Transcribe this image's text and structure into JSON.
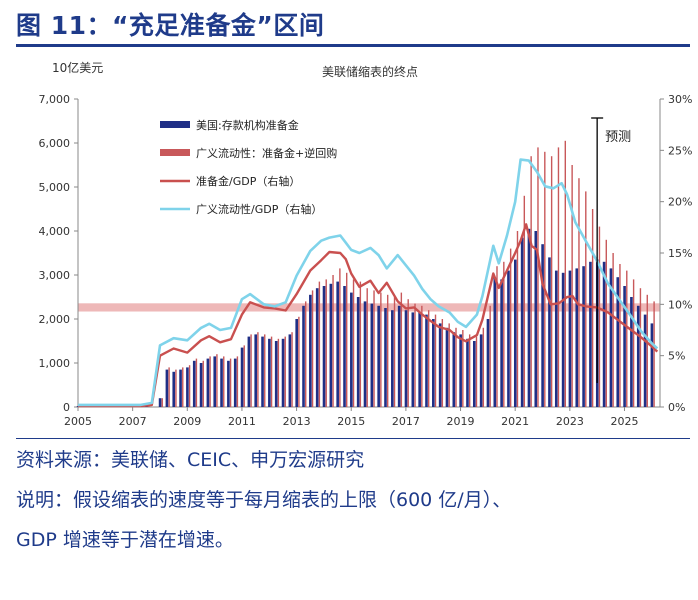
{
  "figure_title": "图 11：“充足准备金”区间",
  "source_text": "资料来源：美联储、CEIC、申万宏源研究",
  "note_line1": "说明：假设缩表的速度等于每月缩表的上限（600 亿/月）、",
  "note_line2": "GDP 增速等于潜在增速。",
  "colors": {
    "navy": "#1f2f86",
    "bar_red": "#c8585a",
    "line_red": "#c9504f",
    "line_cyan": "#7fd3ea",
    "band": "#e8a0a0",
    "title_blue": "#1f3b8a"
  },
  "chart_data": {
    "type": "bar+line",
    "title": "美联储缩表的终点",
    "left_unit": "10亿美元",
    "x_ticks": [
      "2005",
      "2007",
      "2009",
      "2011",
      "2013",
      "2015",
      "2017",
      "2019",
      "2021",
      "2023",
      "2025"
    ],
    "y_left_ticks": [
      "0",
      "1,000",
      "2,000",
      "3,000",
      "4,000",
      "5,000",
      "6,000",
      "7,000"
    ],
    "y_right_ticks": [
      "0%",
      "5%",
      "10%",
      "15%",
      "20%",
      "25%",
      "30%"
    ],
    "ylim_left": [
      0,
      7000
    ],
    "ylim_right": [
      0,
      0.3
    ],
    "xlim": [
      2005,
      2026.3
    ],
    "legend": [
      "美国:存款机构准备金",
      "广义流动性：准备金+逆回购",
      "准备金/GDP（右轴）",
      "广义流动性/GDP（右轴）"
    ],
    "forecast_label": "预测",
    "forecast_x": 2024.0,
    "band_range_pct": [
      0.093,
      0.101
    ],
    "reserves_bars": [
      [
        2005.0,
        20
      ],
      [
        2005.5,
        20
      ],
      [
        2006.0,
        20
      ],
      [
        2006.5,
        20
      ],
      [
        2007.0,
        20
      ],
      [
        2007.5,
        20
      ],
      [
        2008.0,
        200
      ],
      [
        2008.25,
        850
      ],
      [
        2008.5,
        800
      ],
      [
        2008.75,
        850
      ],
      [
        2009.0,
        900
      ],
      [
        2009.25,
        1050
      ],
      [
        2009.5,
        1000
      ],
      [
        2009.75,
        1100
      ],
      [
        2010.0,
        1150
      ],
      [
        2010.25,
        1100
      ],
      [
        2010.5,
        1050
      ],
      [
        2010.75,
        1100
      ],
      [
        2011.0,
        1350
      ],
      [
        2011.25,
        1600
      ],
      [
        2011.5,
        1650
      ],
      [
        2011.75,
        1600
      ],
      [
        2012.0,
        1550
      ],
      [
        2012.25,
        1500
      ],
      [
        2012.5,
        1550
      ],
      [
        2012.75,
        1650
      ],
      [
        2013.0,
        2000
      ],
      [
        2013.25,
        2300
      ],
      [
        2013.5,
        2550
      ],
      [
        2013.75,
        2700
      ],
      [
        2014.0,
        2750
      ],
      [
        2014.25,
        2800
      ],
      [
        2014.5,
        2850
      ],
      [
        2014.75,
        2750
      ],
      [
        2015.0,
        2600
      ],
      [
        2015.25,
        2500
      ],
      [
        2015.5,
        2400
      ],
      [
        2015.75,
        2350
      ],
      [
        2016.0,
        2300
      ],
      [
        2016.25,
        2250
      ],
      [
        2016.5,
        2200
      ],
      [
        2016.75,
        2300
      ],
      [
        2017.0,
        2200
      ],
      [
        2017.25,
        2150
      ],
      [
        2017.5,
        2150
      ],
      [
        2017.75,
        2100
      ],
      [
        2018.0,
        2000
      ],
      [
        2018.25,
        1900
      ],
      [
        2018.5,
        1800
      ],
      [
        2018.75,
        1700
      ],
      [
        2019.0,
        1650
      ],
      [
        2019.25,
        1550
      ],
      [
        2019.5,
        1500
      ],
      [
        2019.75,
        1650
      ],
      [
        2020.0,
        2000
      ],
      [
        2020.25,
        2950
      ],
      [
        2020.5,
        2900
      ],
      [
        2020.75,
        3100
      ],
      [
        2021.0,
        3350
      ],
      [
        2021.25,
        3850
      ],
      [
        2021.5,
        4050
      ],
      [
        2021.75,
        4000
      ],
      [
        2022.0,
        3700
      ],
      [
        2022.25,
        3400
      ],
      [
        2022.5,
        3100
      ],
      [
        2022.75,
        3050
      ],
      [
        2023.0,
        3100
      ],
      [
        2023.25,
        3150
      ],
      [
        2023.5,
        3200
      ],
      [
        2023.75,
        3300
      ],
      [
        2024.0,
        3350
      ],
      [
        2024.25,
        3300
      ],
      [
        2024.5,
        3150
      ],
      [
        2024.75,
        2950
      ],
      [
        2025.0,
        2750
      ],
      [
        2025.25,
        2500
      ],
      [
        2025.5,
        2300
      ],
      [
        2025.75,
        2100
      ],
      [
        2026.0,
        1900
      ]
    ],
    "liquidity_bars": [
      [
        2005.0,
        20
      ],
      [
        2005.5,
        20
      ],
      [
        2006.0,
        20
      ],
      [
        2006.5,
        20
      ],
      [
        2007.0,
        20
      ],
      [
        2007.5,
        20
      ],
      [
        2008.0,
        200
      ],
      [
        2008.25,
        900
      ],
      [
        2008.5,
        850
      ],
      [
        2008.75,
        900
      ],
      [
        2009.0,
        950
      ],
      [
        2009.25,
        1100
      ],
      [
        2009.5,
        1050
      ],
      [
        2009.75,
        1150
      ],
      [
        2010.0,
        1200
      ],
      [
        2010.25,
        1150
      ],
      [
        2010.5,
        1100
      ],
      [
        2010.75,
        1150
      ],
      [
        2011.0,
        1400
      ],
      [
        2011.25,
        1650
      ],
      [
        2011.5,
        1700
      ],
      [
        2011.75,
        1650
      ],
      [
        2012.0,
        1600
      ],
      [
        2012.25,
        1550
      ],
      [
        2012.5,
        1600
      ],
      [
        2012.75,
        1700
      ],
      [
        2013.0,
        2050
      ],
      [
        2013.25,
        2400
      ],
      [
        2013.5,
        2650
      ],
      [
        2013.75,
        2850
      ],
      [
        2014.0,
        2900
      ],
      [
        2014.25,
        3000
      ],
      [
        2014.5,
        3150
      ],
      [
        2014.75,
        3050
      ],
      [
        2015.0,
        2900
      ],
      [
        2015.25,
        2850
      ],
      [
        2015.5,
        2700
      ],
      [
        2015.75,
        2650
      ],
      [
        2016.0,
        2600
      ],
      [
        2016.25,
        2550
      ],
      [
        2016.5,
        2500
      ],
      [
        2016.75,
        2600
      ],
      [
        2017.0,
        2450
      ],
      [
        2017.25,
        2350
      ],
      [
        2017.5,
        2300
      ],
      [
        2017.75,
        2200
      ],
      [
        2018.0,
        2100
      ],
      [
        2018.25,
        2000
      ],
      [
        2018.5,
        1900
      ],
      [
        2018.75,
        1800
      ],
      [
        2019.0,
        1750
      ],
      [
        2019.25,
        1650
      ],
      [
        2019.5,
        1600
      ],
      [
        2019.75,
        1800
      ],
      [
        2020.0,
        2300
      ],
      [
        2020.25,
        3200
      ],
      [
        2020.5,
        3300
      ],
      [
        2020.75,
        3600
      ],
      [
        2021.0,
        4000
      ],
      [
        2021.25,
        4800
      ],
      [
        2021.5,
        5700
      ],
      [
        2021.75,
        5900
      ],
      [
        2022.0,
        5800
      ],
      [
        2022.25,
        5700
      ],
      [
        2022.5,
        5900
      ],
      [
        2022.75,
        6050
      ],
      [
        2023.0,
        5500
      ],
      [
        2023.25,
        5200
      ],
      [
        2023.5,
        4900
      ],
      [
        2023.75,
        4500
      ],
      [
        2024.0,
        4100
      ],
      [
        2024.25,
        3800
      ],
      [
        2024.5,
        3500
      ],
      [
        2024.75,
        3250
      ],
      [
        2025.0,
        3100
      ],
      [
        2025.25,
        2900
      ],
      [
        2025.5,
        2700
      ],
      [
        2025.75,
        2550
      ],
      [
        2026.0,
        2400
      ]
    ],
    "reserves_gdp": [
      [
        2005.0,
        0.001
      ],
      [
        2007.3,
        0.001
      ],
      [
        2007.7,
        0.002
      ],
      [
        2008.0,
        0.05
      ],
      [
        2008.5,
        0.057
      ],
      [
        2009.0,
        0.053
      ],
      [
        2009.5,
        0.065
      ],
      [
        2009.8,
        0.069
      ],
      [
        2010.2,
        0.063
      ],
      [
        2010.6,
        0.066
      ],
      [
        2011.0,
        0.09
      ],
      [
        2011.3,
        0.102
      ],
      [
        2011.8,
        0.097
      ],
      [
        2012.2,
        0.096
      ],
      [
        2012.6,
        0.094
      ],
      [
        2013.0,
        0.11
      ],
      [
        2013.5,
        0.133
      ],
      [
        2013.9,
        0.143
      ],
      [
        2014.2,
        0.151
      ],
      [
        2014.6,
        0.15
      ],
      [
        2014.8,
        0.144
      ],
      [
        2015.0,
        0.13
      ],
      [
        2015.3,
        0.117
      ],
      [
        2015.7,
        0.123
      ],
      [
        2016.0,
        0.111
      ],
      [
        2016.3,
        0.121
      ],
      [
        2016.7,
        0.103
      ],
      [
        2017.0,
        0.096
      ],
      [
        2017.3,
        0.097
      ],
      [
        2017.6,
        0.09
      ],
      [
        2017.9,
        0.084
      ],
      [
        2018.2,
        0.078
      ],
      [
        2018.6,
        0.075
      ],
      [
        2018.9,
        0.068
      ],
      [
        2019.2,
        0.064
      ],
      [
        2019.6,
        0.07
      ],
      [
        2019.8,
        0.085
      ],
      [
        2020.2,
        0.13
      ],
      [
        2020.4,
        0.116
      ],
      [
        2020.7,
        0.133
      ],
      [
        2021.0,
        0.15
      ],
      [
        2021.2,
        0.162
      ],
      [
        2021.4,
        0.178
      ],
      [
        2021.6,
        0.157
      ],
      [
        2021.8,
        0.153
      ],
      [
        2022.0,
        0.12
      ],
      [
        2022.3,
        0.1
      ],
      [
        2022.6,
        0.101
      ],
      [
        2022.9,
        0.107
      ],
      [
        2023.1,
        0.108
      ],
      [
        2023.3,
        0.1
      ],
      [
        2023.6,
        0.098
      ],
      [
        2024.0,
        0.097
      ],
      [
        2024.4,
        0.092
      ],
      [
        2024.8,
        0.084
      ],
      [
        2025.2,
        0.076
      ],
      [
        2025.6,
        0.068
      ],
      [
        2026.0,
        0.059
      ],
      [
        2026.2,
        0.054
      ]
    ],
    "liquidity_gdp": [
      [
        2005.0,
        0.002
      ],
      [
        2007.3,
        0.002
      ],
      [
        2007.7,
        0.004
      ],
      [
        2008.0,
        0.06
      ],
      [
        2008.5,
        0.067
      ],
      [
        2009.0,
        0.065
      ],
      [
        2009.5,
        0.077
      ],
      [
        2009.8,
        0.081
      ],
      [
        2010.2,
        0.075
      ],
      [
        2010.6,
        0.077
      ],
      [
        2011.0,
        0.105
      ],
      [
        2011.3,
        0.11
      ],
      [
        2011.8,
        0.1
      ],
      [
        2012.2,
        0.098
      ],
      [
        2012.6,
        0.102
      ],
      [
        2013.0,
        0.128
      ],
      [
        2013.5,
        0.152
      ],
      [
        2013.9,
        0.162
      ],
      [
        2014.2,
        0.165
      ],
      [
        2014.6,
        0.167
      ],
      [
        2014.8,
        0.16
      ],
      [
        2015.0,
        0.153
      ],
      [
        2015.3,
        0.15
      ],
      [
        2015.7,
        0.155
      ],
      [
        2016.0,
        0.148
      ],
      [
        2016.3,
        0.135
      ],
      [
        2016.7,
        0.148
      ],
      [
        2017.0,
        0.138
      ],
      [
        2017.3,
        0.128
      ],
      [
        2017.6,
        0.115
      ],
      [
        2017.9,
        0.105
      ],
      [
        2018.2,
        0.098
      ],
      [
        2018.6,
        0.092
      ],
      [
        2018.9,
        0.083
      ],
      [
        2019.2,
        0.078
      ],
      [
        2019.6,
        0.09
      ],
      [
        2019.8,
        0.108
      ],
      [
        2020.2,
        0.157
      ],
      [
        2020.4,
        0.14
      ],
      [
        2020.7,
        0.167
      ],
      [
        2021.0,
        0.2
      ],
      [
        2021.2,
        0.241
      ],
      [
        2021.5,
        0.24
      ],
      [
        2021.8,
        0.229
      ],
      [
        2022.1,
        0.215
      ],
      [
        2022.4,
        0.213
      ],
      [
        2022.7,
        0.218
      ],
      [
        2022.9,
        0.207
      ],
      [
        2023.2,
        0.18
      ],
      [
        2023.6,
        0.161
      ],
      [
        2024.0,
        0.142
      ],
      [
        2024.4,
        0.12
      ],
      [
        2024.8,
        0.105
      ],
      [
        2025.2,
        0.09
      ],
      [
        2025.6,
        0.074
      ],
      [
        2026.0,
        0.062
      ],
      [
        2026.2,
        0.057
      ]
    ]
  }
}
